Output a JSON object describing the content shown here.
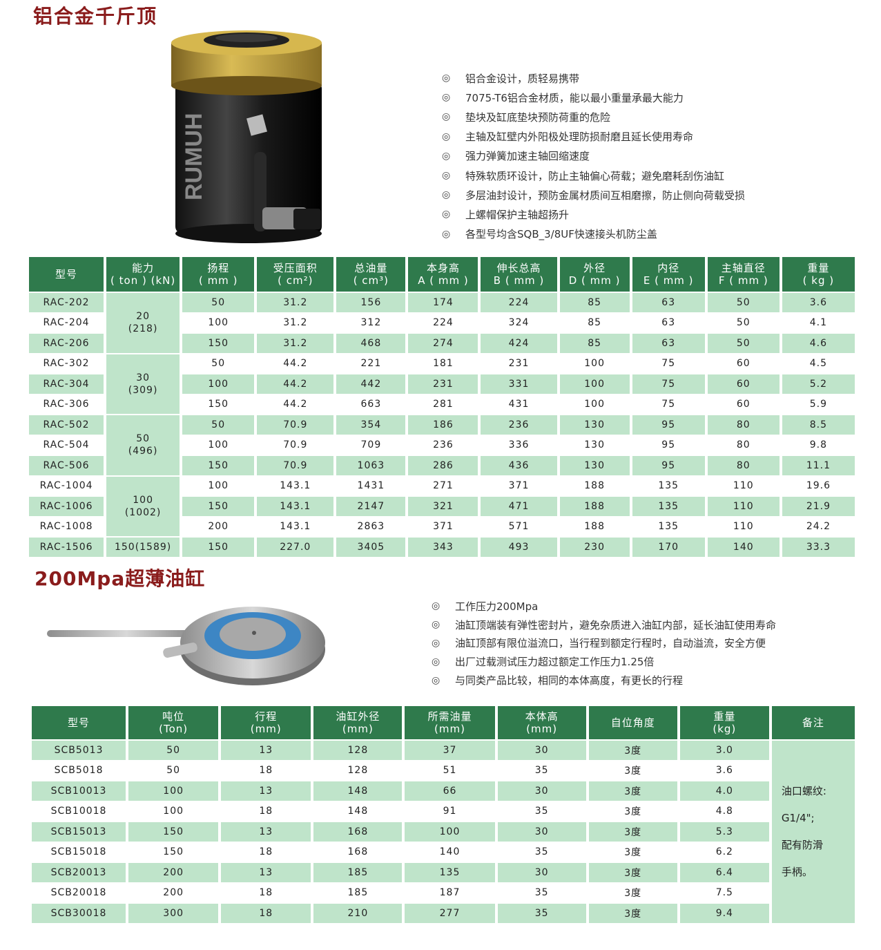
{
  "section1": {
    "title": "铝合金千斤顶",
    "bullet_icon": "double-circle-icon",
    "features": [
      "铝合金设计，质轻易携带",
      "7075-T6铝合金材质，能以最小重量承最大能力",
      "垫块及缸底垫块预防荷重的危险",
      "主轴及缸壁内外阳极处理防损耐磨且延长使用寿命",
      "强力弹簧加速主轴回缩速度",
      "特殊软质环设计，防止主轴偏心荷载；避免磨耗刮伤油缸",
      "多层油封设计，预防金属材质间互相磨擦，防止侧向荷载受损",
      " 上螺帽保护主轴超扬升",
      "各型号均含SQB_3/8UF快速接头机防尘盖"
    ],
    "product_logo": "RUMUH",
    "table": {
      "headers": [
        [
          "型号",
          ""
        ],
        [
          "能力",
          "( ton ) (kN)"
        ],
        [
          "扬程",
          "( mm )"
        ],
        [
          "受压面积",
          "( cm²)"
        ],
        [
          "总油量",
          "( cm³)"
        ],
        [
          "本身高",
          "A ( mm )"
        ],
        [
          "伸长总高",
          "B ( mm )"
        ],
        [
          "外径",
          "D ( mm )"
        ],
        [
          "内径",
          "E ( mm )"
        ],
        [
          "主轴直径",
          "F ( mm )"
        ],
        [
          "重量",
          "( kg )"
        ]
      ],
      "capacity_groups": [
        {
          "label": [
            "20",
            "(218)"
          ],
          "rows": 3
        },
        {
          "label": [
            "30",
            "(309)"
          ],
          "rows": 3
        },
        {
          "label": [
            "50",
            "(496)"
          ],
          "rows": 3
        },
        {
          "label": [
            "100",
            "(1002)"
          ],
          "rows": 3
        },
        {
          "label": [
            "150(1589)"
          ],
          "rows": 1
        }
      ],
      "rows": [
        [
          "RAC-202",
          "50",
          "31.2",
          "156",
          "174",
          "224",
          "85",
          "63",
          "50",
          "3.6"
        ],
        [
          "RAC-204",
          "100",
          "31.2",
          "312",
          "224",
          "324",
          "85",
          "63",
          "50",
          "4.1"
        ],
        [
          "RAC-206",
          "150",
          "31.2",
          "468",
          "274",
          "424",
          "85",
          "63",
          "50",
          "4.6"
        ],
        [
          "RAC-302",
          "50",
          "44.2",
          "221",
          "181",
          "231",
          "100",
          "75",
          "60",
          "4.5"
        ],
        [
          "RAC-304",
          "100",
          "44.2",
          "442",
          "231",
          "331",
          "100",
          "75",
          "60",
          "5.2"
        ],
        [
          "RAC-306",
          "150",
          "44.2",
          "663",
          "281",
          "431",
          "100",
          "75",
          "60",
          "5.9"
        ],
        [
          "RAC-502",
          "50",
          "70.9",
          "354",
          "186",
          "236",
          "130",
          "95",
          "80",
          "8.5"
        ],
        [
          "RAC-504",
          "100",
          "70.9",
          "709",
          "236",
          "336",
          "130",
          "95",
          "80",
          "9.8"
        ],
        [
          "RAC-506",
          "150",
          "70.9",
          "1063",
          "286",
          "436",
          "130",
          "95",
          "80",
          "11.1"
        ],
        [
          "RAC-1004",
          "100",
          "143.1",
          "1431",
          "271",
          "371",
          "188",
          "135",
          "110",
          "19.6"
        ],
        [
          "RAC-1006",
          "150",
          "143.1",
          "2147",
          "321",
          "471",
          "188",
          "135",
          "110",
          "21.9"
        ],
        [
          "RAC-1008",
          "200",
          "143.1",
          "2863",
          "371",
          "571",
          "188",
          "135",
          "110",
          "24.2"
        ],
        [
          "RAC-1506",
          "150",
          "227.0",
          "3405",
          "343",
          "493",
          "230",
          "170",
          "140",
          "33.3"
        ]
      ]
    }
  },
  "section2": {
    "title": "200Mpa超薄油缸",
    "features": [
      "工作压力200Mpa",
      "油缸顶端装有弹性密封片，避免杂质进入油缸内部，延长油缸使用寿命",
      "油缸顶部有限位溢流口，当行程到额定行程时，自动溢流，安全方便",
      "出厂过载测试压力超过额定工作压力1.25倍",
      "与同类产品比较，相同的本体高度，有更长的行程"
    ],
    "table": {
      "headers": [
        [
          "型号",
          ""
        ],
        [
          "吨位",
          "(Ton)"
        ],
        [
          "行程",
          "(mm)"
        ],
        [
          "油缸外径",
          "(mm)"
        ],
        [
          "所需油量",
          "(mm)"
        ],
        [
          "本体高",
          "(mm)"
        ],
        [
          "自位角度",
          ""
        ],
        [
          "重量",
          "(kg)"
        ],
        [
          "备注",
          ""
        ]
      ],
      "rows": [
        [
          "SCB5013",
          "50",
          "13",
          "128",
          "37",
          "30",
          "3度",
          "3.0"
        ],
        [
          "SCB5018",
          "50",
          "18",
          "128",
          "51",
          "35",
          "3度",
          "3.6"
        ],
        [
          "SCB10013",
          "100",
          "13",
          "148",
          "66",
          "30",
          "3度",
          "4.0"
        ],
        [
          "SCB10018",
          "100",
          "18",
          "148",
          "91",
          "35",
          "3度",
          "4.8"
        ],
        [
          "SCB15013",
          "150",
          "13",
          "168",
          "100",
          "30",
          "3度",
          "5.3"
        ],
        [
          "SCB15018",
          "150",
          "18",
          "168",
          "140",
          "35",
          "3度",
          "6.2"
        ],
        [
          "SCB20013",
          "200",
          "13",
          "185",
          "135",
          "30",
          "3度",
          "6.4"
        ],
        [
          "SCB20018",
          "200",
          "18",
          "185",
          "187",
          "35",
          "3度",
          "7.5"
        ],
        [
          "SCB30018",
          "300",
          "18",
          "210",
          "277",
          "35",
          "3度",
          "9.4"
        ]
      ],
      "remark": [
        "油口螺纹:",
        "G1/4\";",
        " 配有防滑",
        "手柄。"
      ]
    }
  },
  "colors": {
    "header_green": "#2f7a4c",
    "row_green": "#bfe4ca",
    "title_red": "#8a1c1c"
  }
}
